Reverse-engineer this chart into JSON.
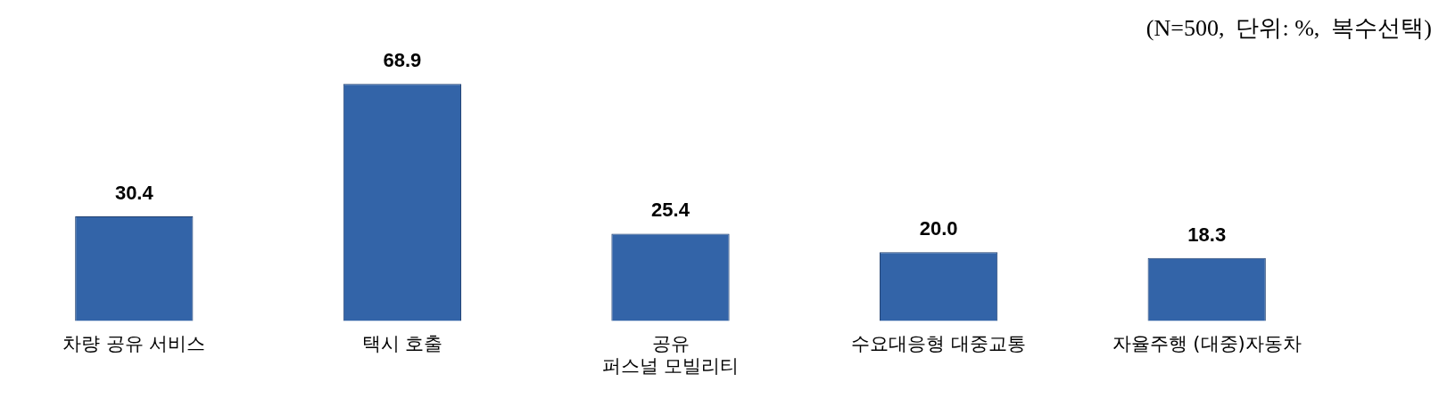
{
  "chart_data": {
    "type": "bar",
    "categories": [
      "차량 공유 서비스",
      "택시 호출",
      "공유\n퍼스널 모빌리티",
      "수요대응형 대중교통",
      "자율주행 (대중)자동차"
    ],
    "values": [
      30.4,
      68.9,
      25.4,
      20.0,
      18.3
    ],
    "value_labels": [
      "30.4",
      "68.9",
      "25.4",
      "20.0",
      "18.3"
    ],
    "color": "#3364a8",
    "grid": false,
    "legend": false,
    "annotations": [
      "(N=500,  단위: %,  복수선택)"
    ]
  }
}
